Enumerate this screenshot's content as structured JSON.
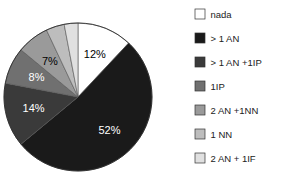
{
  "chart_data": {
    "type": "pie",
    "categories": [
      "nada",
      "> 1 AN",
      "> 1 AN +1IP",
      "1IP",
      "2 AN +1NN",
      "1 NN",
      "2 AN + 1IF"
    ],
    "values": [
      12,
      52,
      14,
      8,
      7,
      4,
      3
    ],
    "value_labels": [
      "12%",
      "52%",
      "14%",
      "8%",
      "7%",
      null,
      null
    ],
    "colors": [
      "#ffffff",
      "#1a1a1a",
      "#3a3a3a",
      "#707070",
      "#9a9a9a",
      "#bdbdbd",
      "#e0e0e0"
    ],
    "data_labels": true,
    "legend": "right"
  }
}
